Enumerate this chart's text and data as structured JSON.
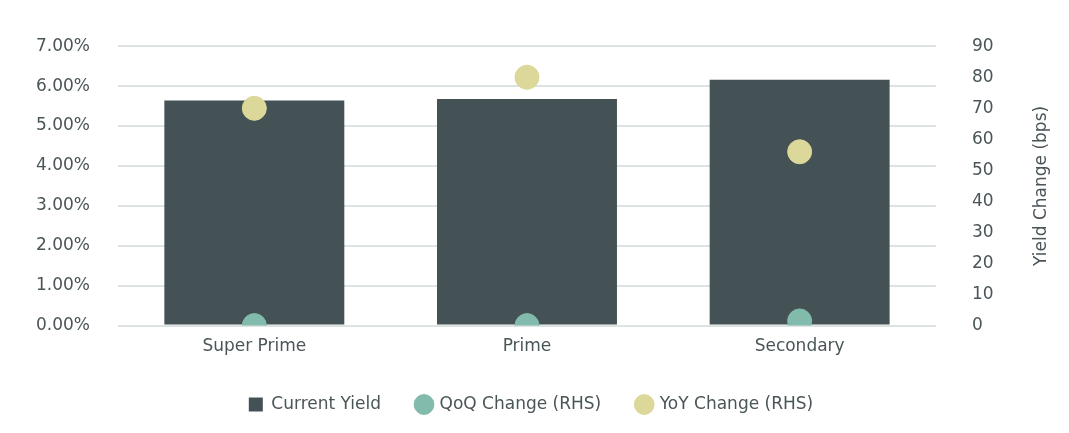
{
  "chart_data": {
    "type": "bar",
    "categories": [
      "Super Prime",
      "Prime",
      "Secondary"
    ],
    "series": [
      {
        "name": "Current Yield",
        "color": "#445256",
        "values": [
          5.64,
          5.68,
          6.16
        ]
      },
      {
        "name": "QoQ Change (RHS)",
        "type": "scatter",
        "axis": "y2",
        "color": "#82bbab",
        "x": [
          "Super Prime",
          "Prime",
          "Secondary"
        ],
        "values": [
          0,
          0,
          1.5
        ]
      },
      {
        "name": "YoY Change (RHS)",
        "type": "scatter",
        "axis": "y2",
        "color": "#dcd89a",
        "x": [
          "Super Prime",
          "Prime",
          "Secondary"
        ],
        "values": [
          70,
          80,
          56
        ]
      }
    ],
    "y2label": "Yield Change (bps)",
    "ylim": [
      0,
      7
    ],
    "yticks": [
      {
        "value": 0,
        "label": "0.00%"
      },
      {
        "value": 1,
        "label": "1.00%"
      },
      {
        "value": 2,
        "label": "2.00%"
      },
      {
        "value": 3,
        "label": "3.00%"
      },
      {
        "value": 4,
        "label": "4.00%"
      },
      {
        "value": 5,
        "label": "5.00%"
      },
      {
        "value": 6,
        "label": "6.00%"
      },
      {
        "value": 7,
        "label": "7.00%"
      }
    ],
    "y2lim": [
      0,
      90
    ],
    "y2ticks": [
      0,
      10,
      20,
      30,
      40,
      50,
      60,
      70,
      80,
      90
    ],
    "grid": "y",
    "legend": "bottom",
    "marker": "circle"
  }
}
